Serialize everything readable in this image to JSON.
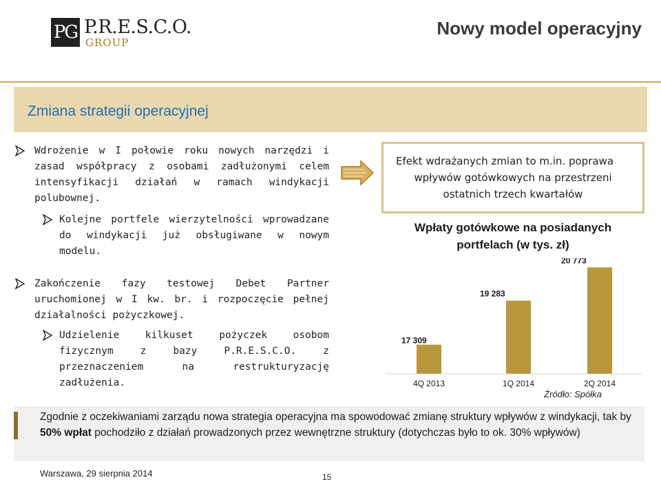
{
  "header": {
    "logo_mark": "PG",
    "logo_name": "P.R.E.S.C.O.",
    "logo_sub": "GROUP",
    "title": "Nowy model operacyjny"
  },
  "section": {
    "title": "Zmiana strategii operacyjnej"
  },
  "bullets": [
    {
      "level": 1,
      "text": "Wdrożenie w I połowie roku nowych narzędzi i zasad współpracy z osobami zadłużonymi celem intensyfikacji działań w ramach windykacji polubownej."
    },
    {
      "level": 2,
      "text": "Kolejne portfele wierzytelności wprowadzane do windykacji już obsługiwane w nowym modelu."
    },
    {
      "level": 1,
      "text": "Zakończenie fazy testowej Debet Partner uruchomionej w I kw. br. i rozpoczęcie pełnej działalności pożyczkowej."
    },
    {
      "level": 2,
      "text": "Udzielenie kilkuset pożyczek osobom fizycznym z bazy P.R.E.S.C.O. z przeznaczeniem na restrukturyzację zadłużenia."
    }
  ],
  "note": {
    "line1": "Efekt wdrażanych zmian to m.in. poprawa",
    "line2": "wpływów gotówkowych na przestrzeni",
    "line3": "ostatnich trzech kwartałów"
  },
  "chart_data": {
    "type": "bar",
    "title_line1": "Wpłaty gotówkowe na posiadanych",
    "title_line2": "portfelach (w tys. zł)",
    "categories": [
      "4Q 2013",
      "1Q 2014",
      "2Q 2014"
    ],
    "values": [
      17309,
      19283,
      20773
    ],
    "value_labels": [
      "17 309",
      "19 283",
      "20 773"
    ],
    "ylim": [
      16000,
      21000
    ],
    "grid": false,
    "bar_color": "#b8963c",
    "source": "Źródło: Spółka"
  },
  "bottom": {
    "text_before": "Zgodnie z oczekiwaniami zarządu nowa strategia operacyjna ma spowodować zmianę struktury wpływów z windykacji, tak by ",
    "text_bold": "50% wpłat",
    "text_after": " pochodziło z działań prowadzonych przez wewnętrzne struktury (dotychczas było to ok. 30% wpływów)"
  },
  "footer": {
    "date": "Warszawa, 29 sierpnia 2014",
    "page": "15"
  },
  "colors": {
    "accent_gold": "#c9a75a",
    "section_bg": "#ead7ad",
    "section_title": "#1f6fb2",
    "bar": "#b8963c"
  }
}
